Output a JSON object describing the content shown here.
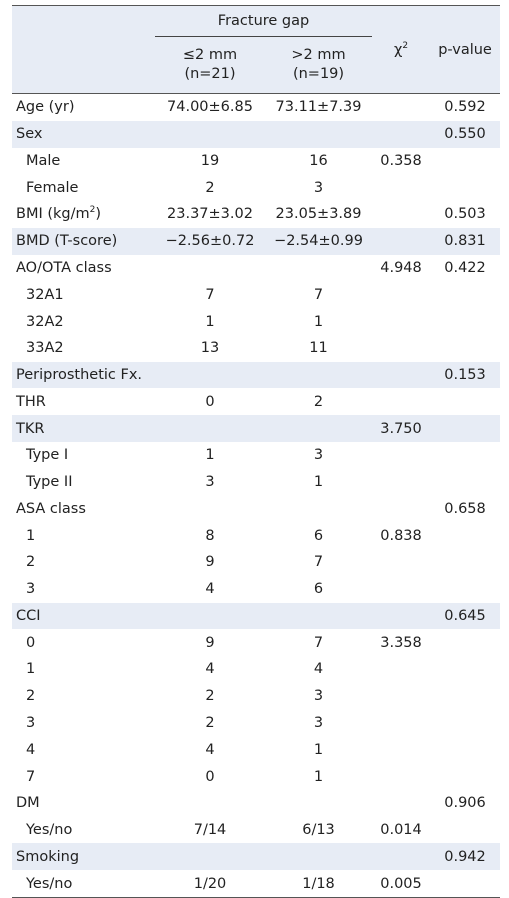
{
  "table": {
    "header": {
      "group_title": "Fracture gap",
      "col_le2": [
        "≤2 mm",
        "(n=21)"
      ],
      "col_gt2": [
        ">2 mm",
        "(n=19)"
      ],
      "chi2": {
        "base": "χ",
        "sup": "2"
      },
      "p": "p-value"
    },
    "groups": [
      {
        "label": "Age (yr)",
        "le2": "74.00±6.85",
        "gt2": "73.11±7.39",
        "p": "0.592"
      },
      {
        "label": "Sex",
        "p": "0.550",
        "items": [
          {
            "label": "Male",
            "le2": "19",
            "gt2": "16",
            "chi2": "0.358"
          },
          {
            "label": "Female",
            "le2": "2",
            "gt2": "3"
          }
        ]
      },
      {
        "label": {
          "text": "BMI (kg/m",
          "sup": "2",
          "after": ")"
        },
        "le2": "23.37±3.02",
        "gt2": "23.05±3.89",
        "p": "0.503"
      },
      {
        "label": "BMD (T-score)",
        "le2": "−2.56±0.72",
        "gt2": "−2.54±0.99",
        "p": "0.831"
      },
      {
        "label": "AO/OTA class",
        "chi2": "4.948",
        "p": "0.422",
        "items": [
          {
            "label": "32A1",
            "le2": "7",
            "gt2": "7"
          },
          {
            "label": "32A2",
            "le2": "1",
            "gt2": "1"
          },
          {
            "label": "33A2",
            "le2": "13",
            "gt2": "11"
          }
        ]
      },
      {
        "label": "Periprosthetic Fx.",
        "p": "0.153"
      },
      {
        "label": "THR",
        "le2": "0",
        "gt2": "2"
      },
      {
        "label": "TKR",
        "chi2": "3.750",
        "items": [
          {
            "label": "Type I",
            "le2": "1",
            "gt2": "3"
          },
          {
            "label": "Type II",
            "le2": "3",
            "gt2": "1"
          }
        ]
      },
      {
        "label": "ASA class",
        "p": "0.658",
        "items": [
          {
            "label": "1",
            "le2": "8",
            "gt2": "6",
            "chi2": "0.838"
          },
          {
            "label": "2",
            "le2": "9",
            "gt2": "7"
          },
          {
            "label": "3",
            "le2": "4",
            "gt2": "6"
          }
        ]
      },
      {
        "label": "CCI",
        "p": "0.645",
        "items": [
          {
            "label": "0",
            "le2": "9",
            "gt2": "7",
            "chi2": "3.358"
          },
          {
            "label": "1",
            "le2": "4",
            "gt2": "4"
          },
          {
            "label": "2",
            "le2": "2",
            "gt2": "3"
          },
          {
            "label": "3",
            "le2": "2",
            "gt2": "3"
          },
          {
            "label": "4",
            "le2": "4",
            "gt2": "1"
          },
          {
            "label": "7",
            "le2": "0",
            "gt2": "1"
          }
        ]
      },
      {
        "label": "DM",
        "p": "0.906",
        "items": [
          {
            "label": "Yes/no",
            "le2": "7/14",
            "gt2": "6/13",
            "chi2": "0.014"
          }
        ]
      },
      {
        "label": "Smoking",
        "p": "0.942",
        "items": [
          {
            "label": "Yes/no",
            "le2": "1/20",
            "gt2": "1/18",
            "chi2": "0.005"
          }
        ]
      }
    ]
  }
}
